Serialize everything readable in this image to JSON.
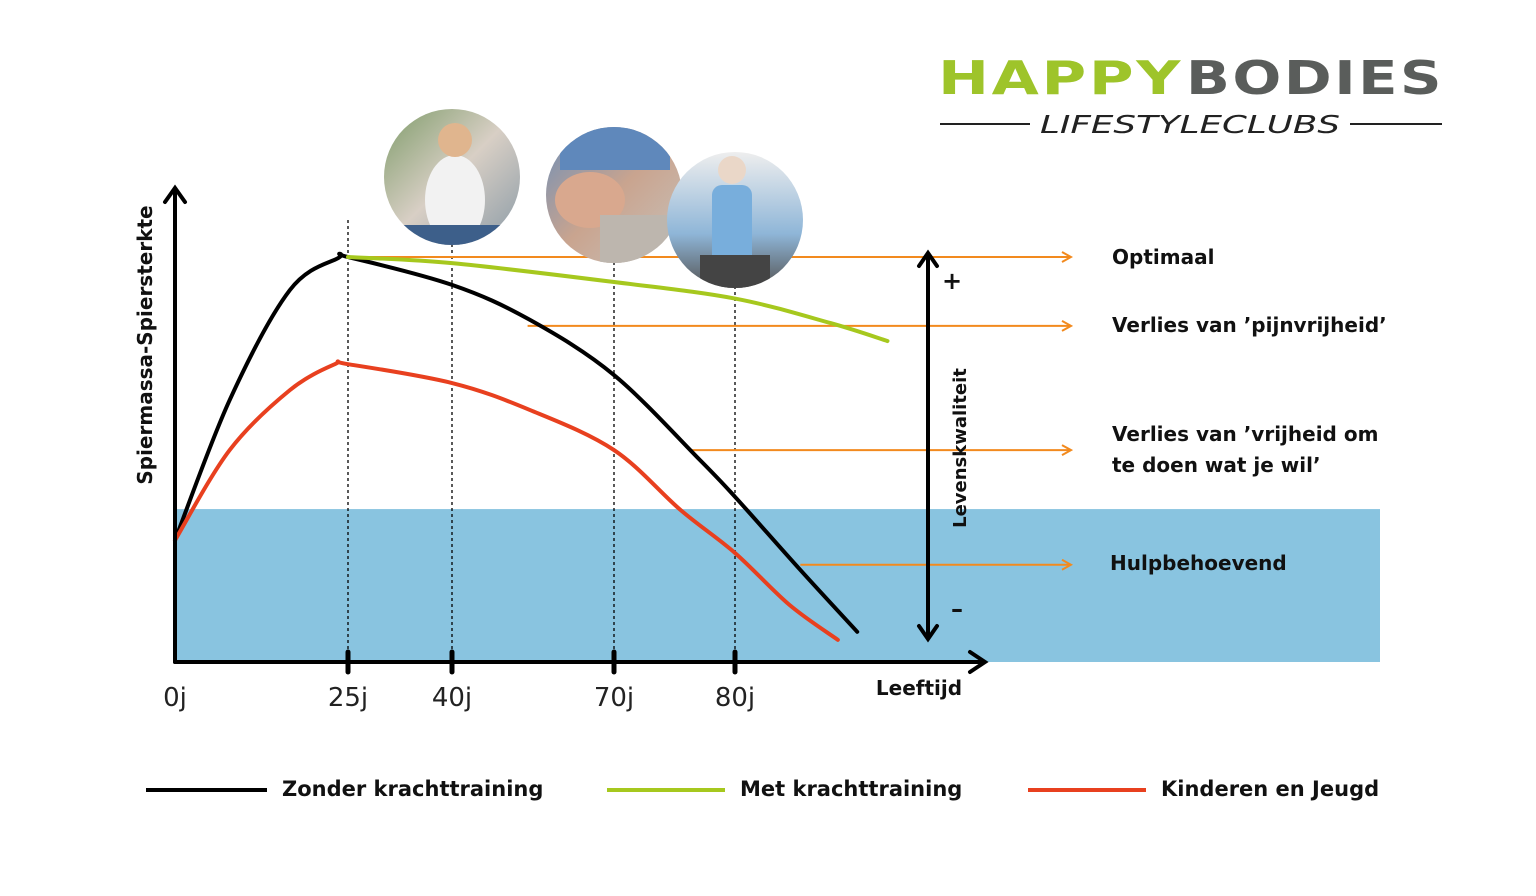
{
  "logo": {
    "brand_green": "HAPPY",
    "brand_gray": "BODIES",
    "tagline": "LIFESTYLECLUBS"
  },
  "colors": {
    "black_line": "#000000",
    "green_line": "#a6c81e",
    "red_line": "#e8401f",
    "zone": "#89c4e0",
    "arrows": "#f28a1e",
    "logo_green": "#9ec42a",
    "logo_gray": "#5a5d5b"
  },
  "chart_data": {
    "type": "line",
    "title": "",
    "xlabel": "Leeftijd",
    "ylabel": "Spiermassa-Spiersterkte",
    "x_ticks": [
      {
        "age": 0,
        "label": "0j"
      },
      {
        "age": 25,
        "label": "25j"
      },
      {
        "age": 40,
        "label": "40j"
      },
      {
        "age": 70,
        "label": "70j"
      },
      {
        "age": 80,
        "label": "80j"
      }
    ],
    "ylim": [
      0,
      100
    ],
    "series": [
      {
        "name": "Zonder krachttraining",
        "color": "#000000",
        "points": [
          [
            0,
            25.8
          ],
          [
            7.9,
            55.5
          ],
          [
            16.6,
            78.8
          ],
          [
            23.6,
            85.6
          ],
          [
            25,
            85.8
          ],
          [
            40,
            79.9
          ],
          [
            54.4,
            72.5
          ],
          [
            70,
            60.8
          ],
          [
            77.1,
            42.8
          ],
          [
            80,
            35
          ],
          [
            85.4,
            19.5
          ],
          [
            90.1,
            6.4
          ]
        ]
      },
      {
        "name": "Met krachttraining",
        "color": "#a6c81e",
        "points": [
          [
            25,
            85.8
          ],
          [
            40,
            84.5
          ],
          [
            70,
            80.5
          ],
          [
            80,
            77
          ],
          [
            87.9,
            71.8
          ],
          [
            92.6,
            68
          ]
        ]
      },
      {
        "name": "Kinderen en Jeugd",
        "color": "#e8401f",
        "points": [
          [
            0,
            25.8
          ],
          [
            7.9,
            44.9
          ],
          [
            16.6,
            57.6
          ],
          [
            23.1,
            63.1
          ],
          [
            25,
            63.1
          ],
          [
            40,
            59.1
          ],
          [
            54.4,
            53.4
          ],
          [
            70,
            44.9
          ],
          [
            75.5,
            32.2
          ],
          [
            80,
            23.1
          ],
          [
            84.5,
            12.1
          ],
          [
            88.5,
            4.7
          ]
        ]
      }
    ],
    "zone": {
      "name": "Hulpbehoevend",
      "y_range": [
        0,
        32.4
      ]
    },
    "levels": [
      {
        "label": "Optimaal",
        "value": 85.8,
        "from_age": 25
      },
      {
        "label": "Verlies van ’pijnvrijheid’",
        "value": 71.2,
        "from_age": 54
      },
      {
        "label": "Verlies van ’vrijheid om te doen wat je wil’",
        "line1": "Verlies van ’vrijheid om",
        "line2": "te doen wat je wil’",
        "value": 44.9,
        "from_age": 76.4
      },
      {
        "label": "Hulpbehoevend",
        "value": 20.6,
        "from_age": 85.4
      }
    ],
    "quality_axis": {
      "label": "Levenskwaliteit",
      "plus": "+",
      "minus": "–"
    },
    "legend": {
      "placement": "bottom"
    }
  }
}
